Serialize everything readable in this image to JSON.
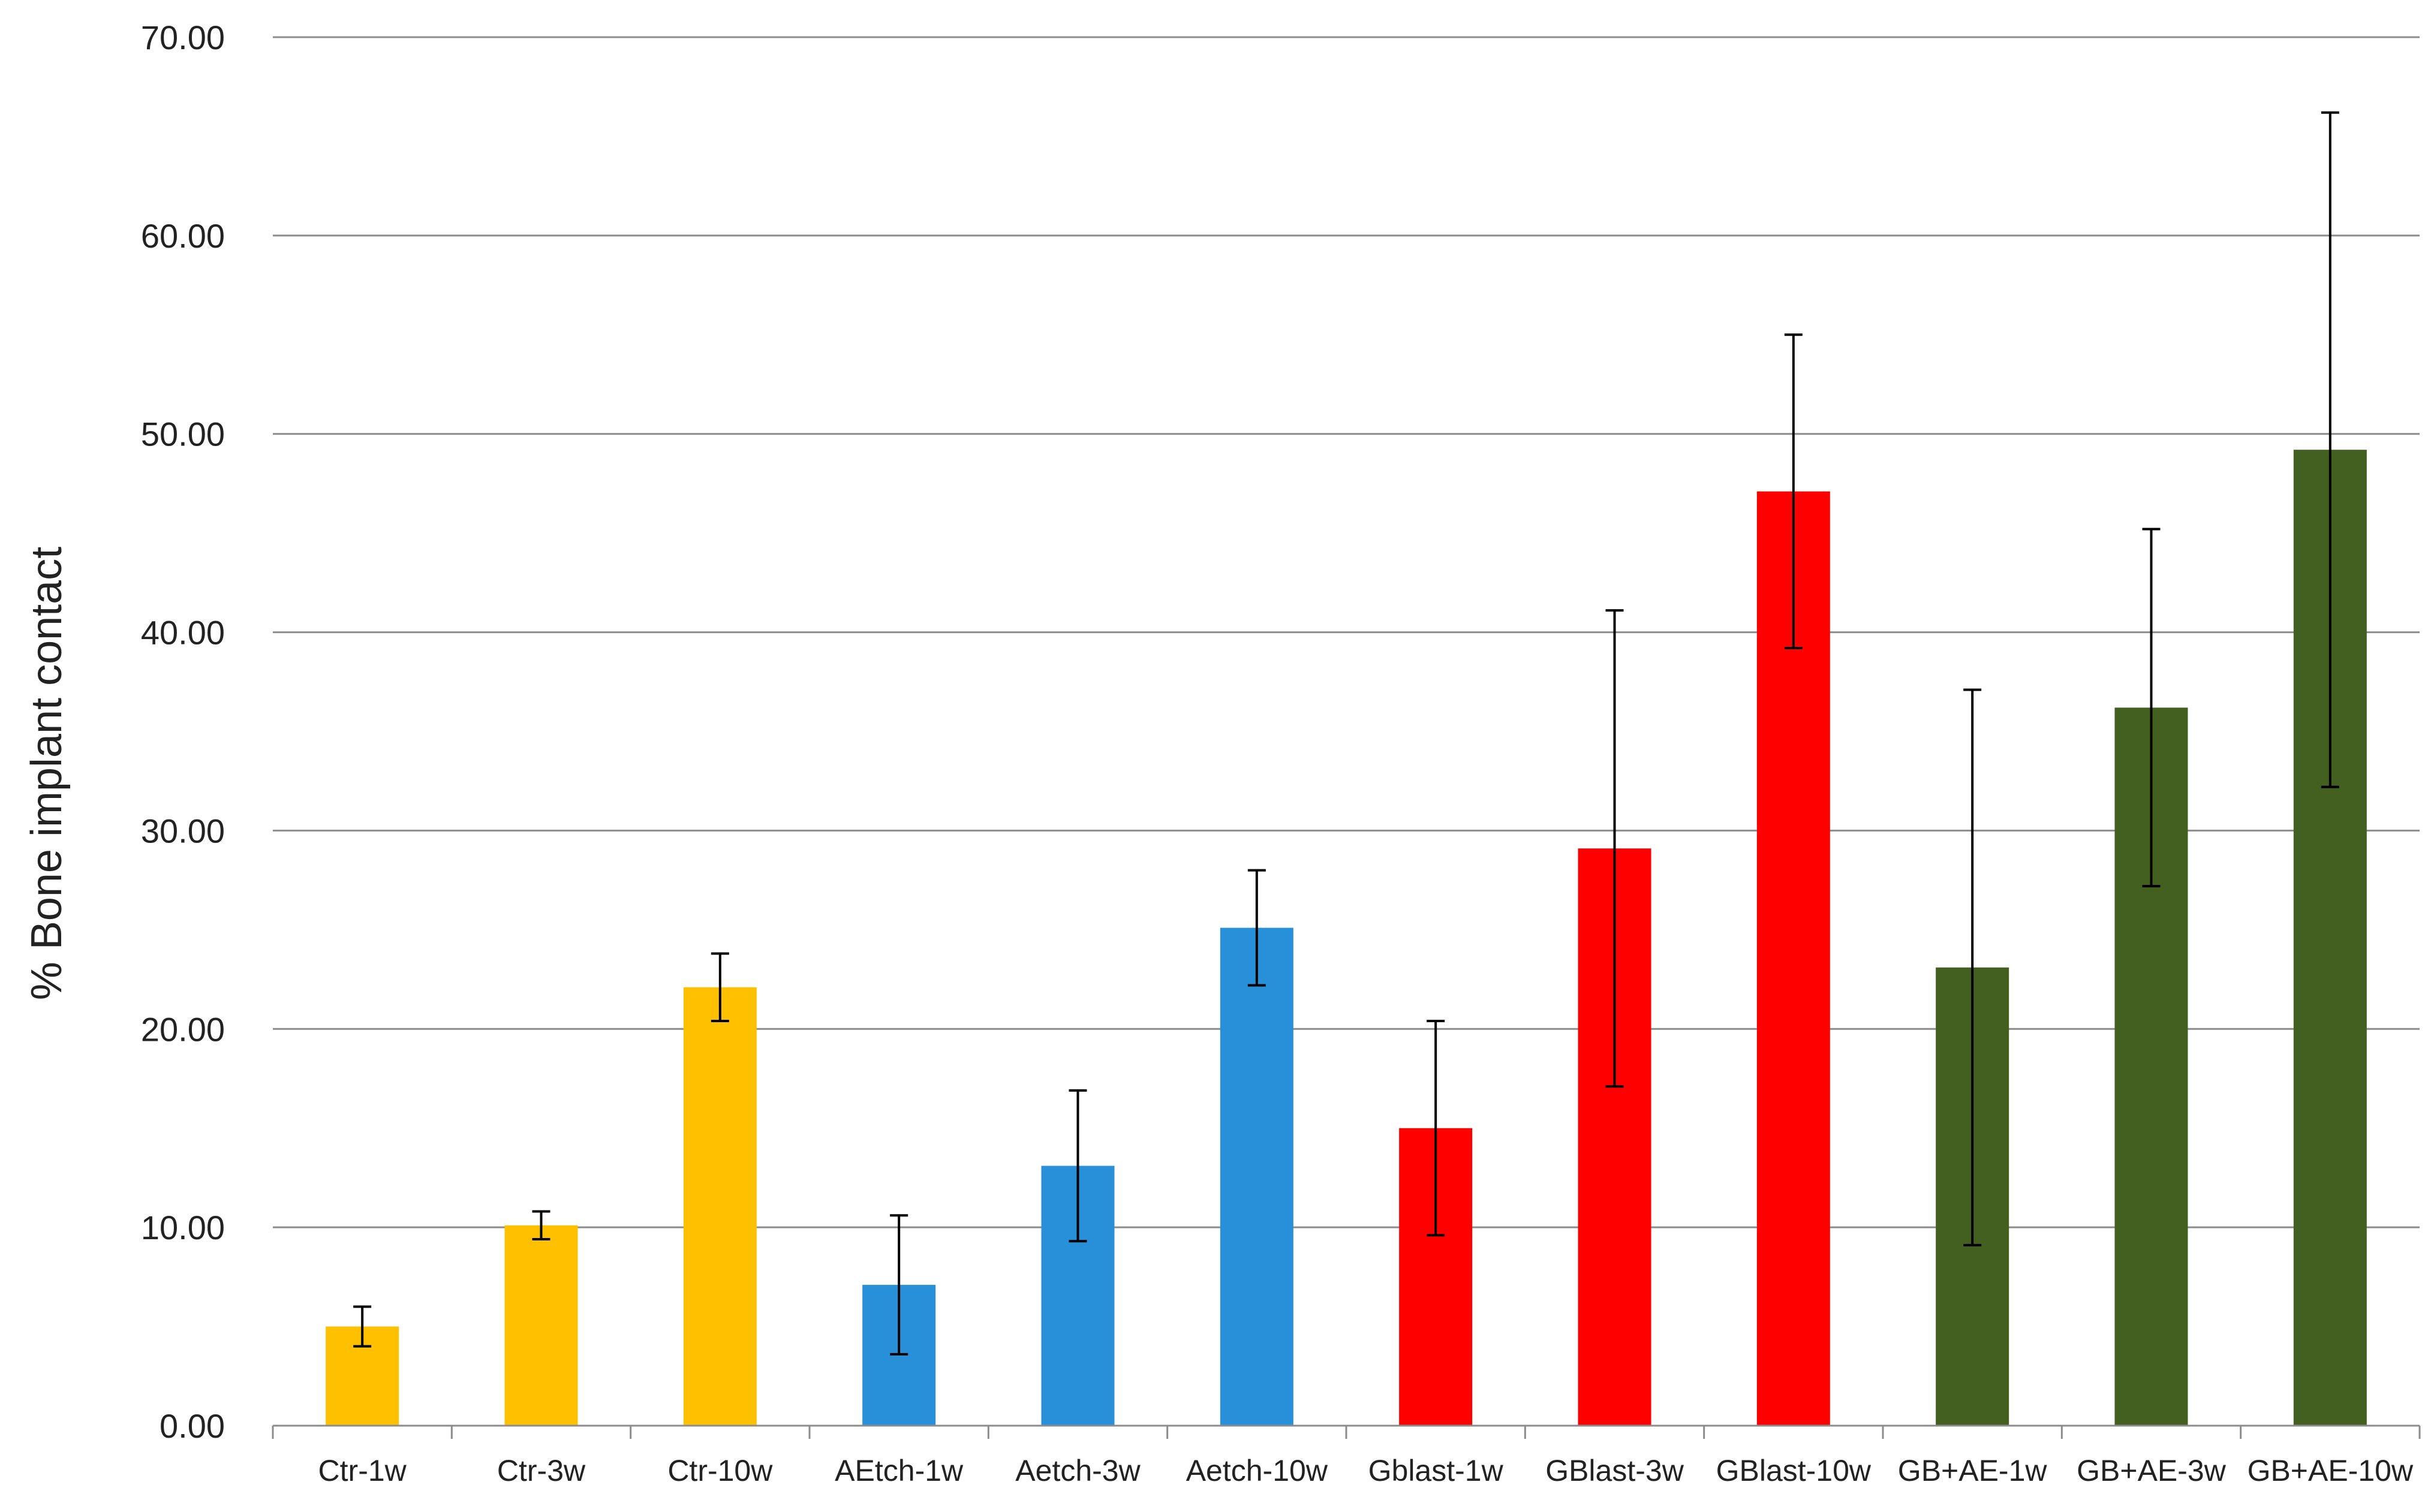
{
  "chart_data": {
    "type": "bar",
    "title": "",
    "xlabel": "",
    "ylabel": "% Bone implant contact",
    "ylim": [
      0,
      70
    ],
    "yticks": [
      "0.00",
      "10.00",
      "20.00",
      "30.00",
      "40.00",
      "50.00",
      "60.00",
      "70.00"
    ],
    "grid": true,
    "legend": "none",
    "categories": [
      "Ctr-1w",
      "Ctr-3w",
      "Ctr-10w",
      "AEtch-1w",
      "Aetch-3w",
      "Aetch-10w",
      "Gblast-1w",
      "GBlast-3w",
      "GBlast-10w",
      "GB+AE-1w",
      "GB+AE-3w",
      "GB+AE-10w"
    ],
    "values": [
      5.0,
      10.1,
      22.1,
      7.1,
      13.1,
      25.1,
      15.0,
      29.1,
      47.1,
      23.1,
      36.2,
      49.2
    ],
    "error": [
      1.0,
      0.7,
      1.7,
      3.5,
      3.8,
      2.9,
      5.4,
      12.0,
      7.9,
      14.0,
      9.0,
      17.0
    ],
    "colors": [
      "#FFC000",
      "#FFC000",
      "#FFC000",
      "#2790D8",
      "#2790D8",
      "#2790D8",
      "#FF0000",
      "#FF0000",
      "#FF0000",
      "#436021",
      "#436021",
      "#436021"
    ]
  }
}
